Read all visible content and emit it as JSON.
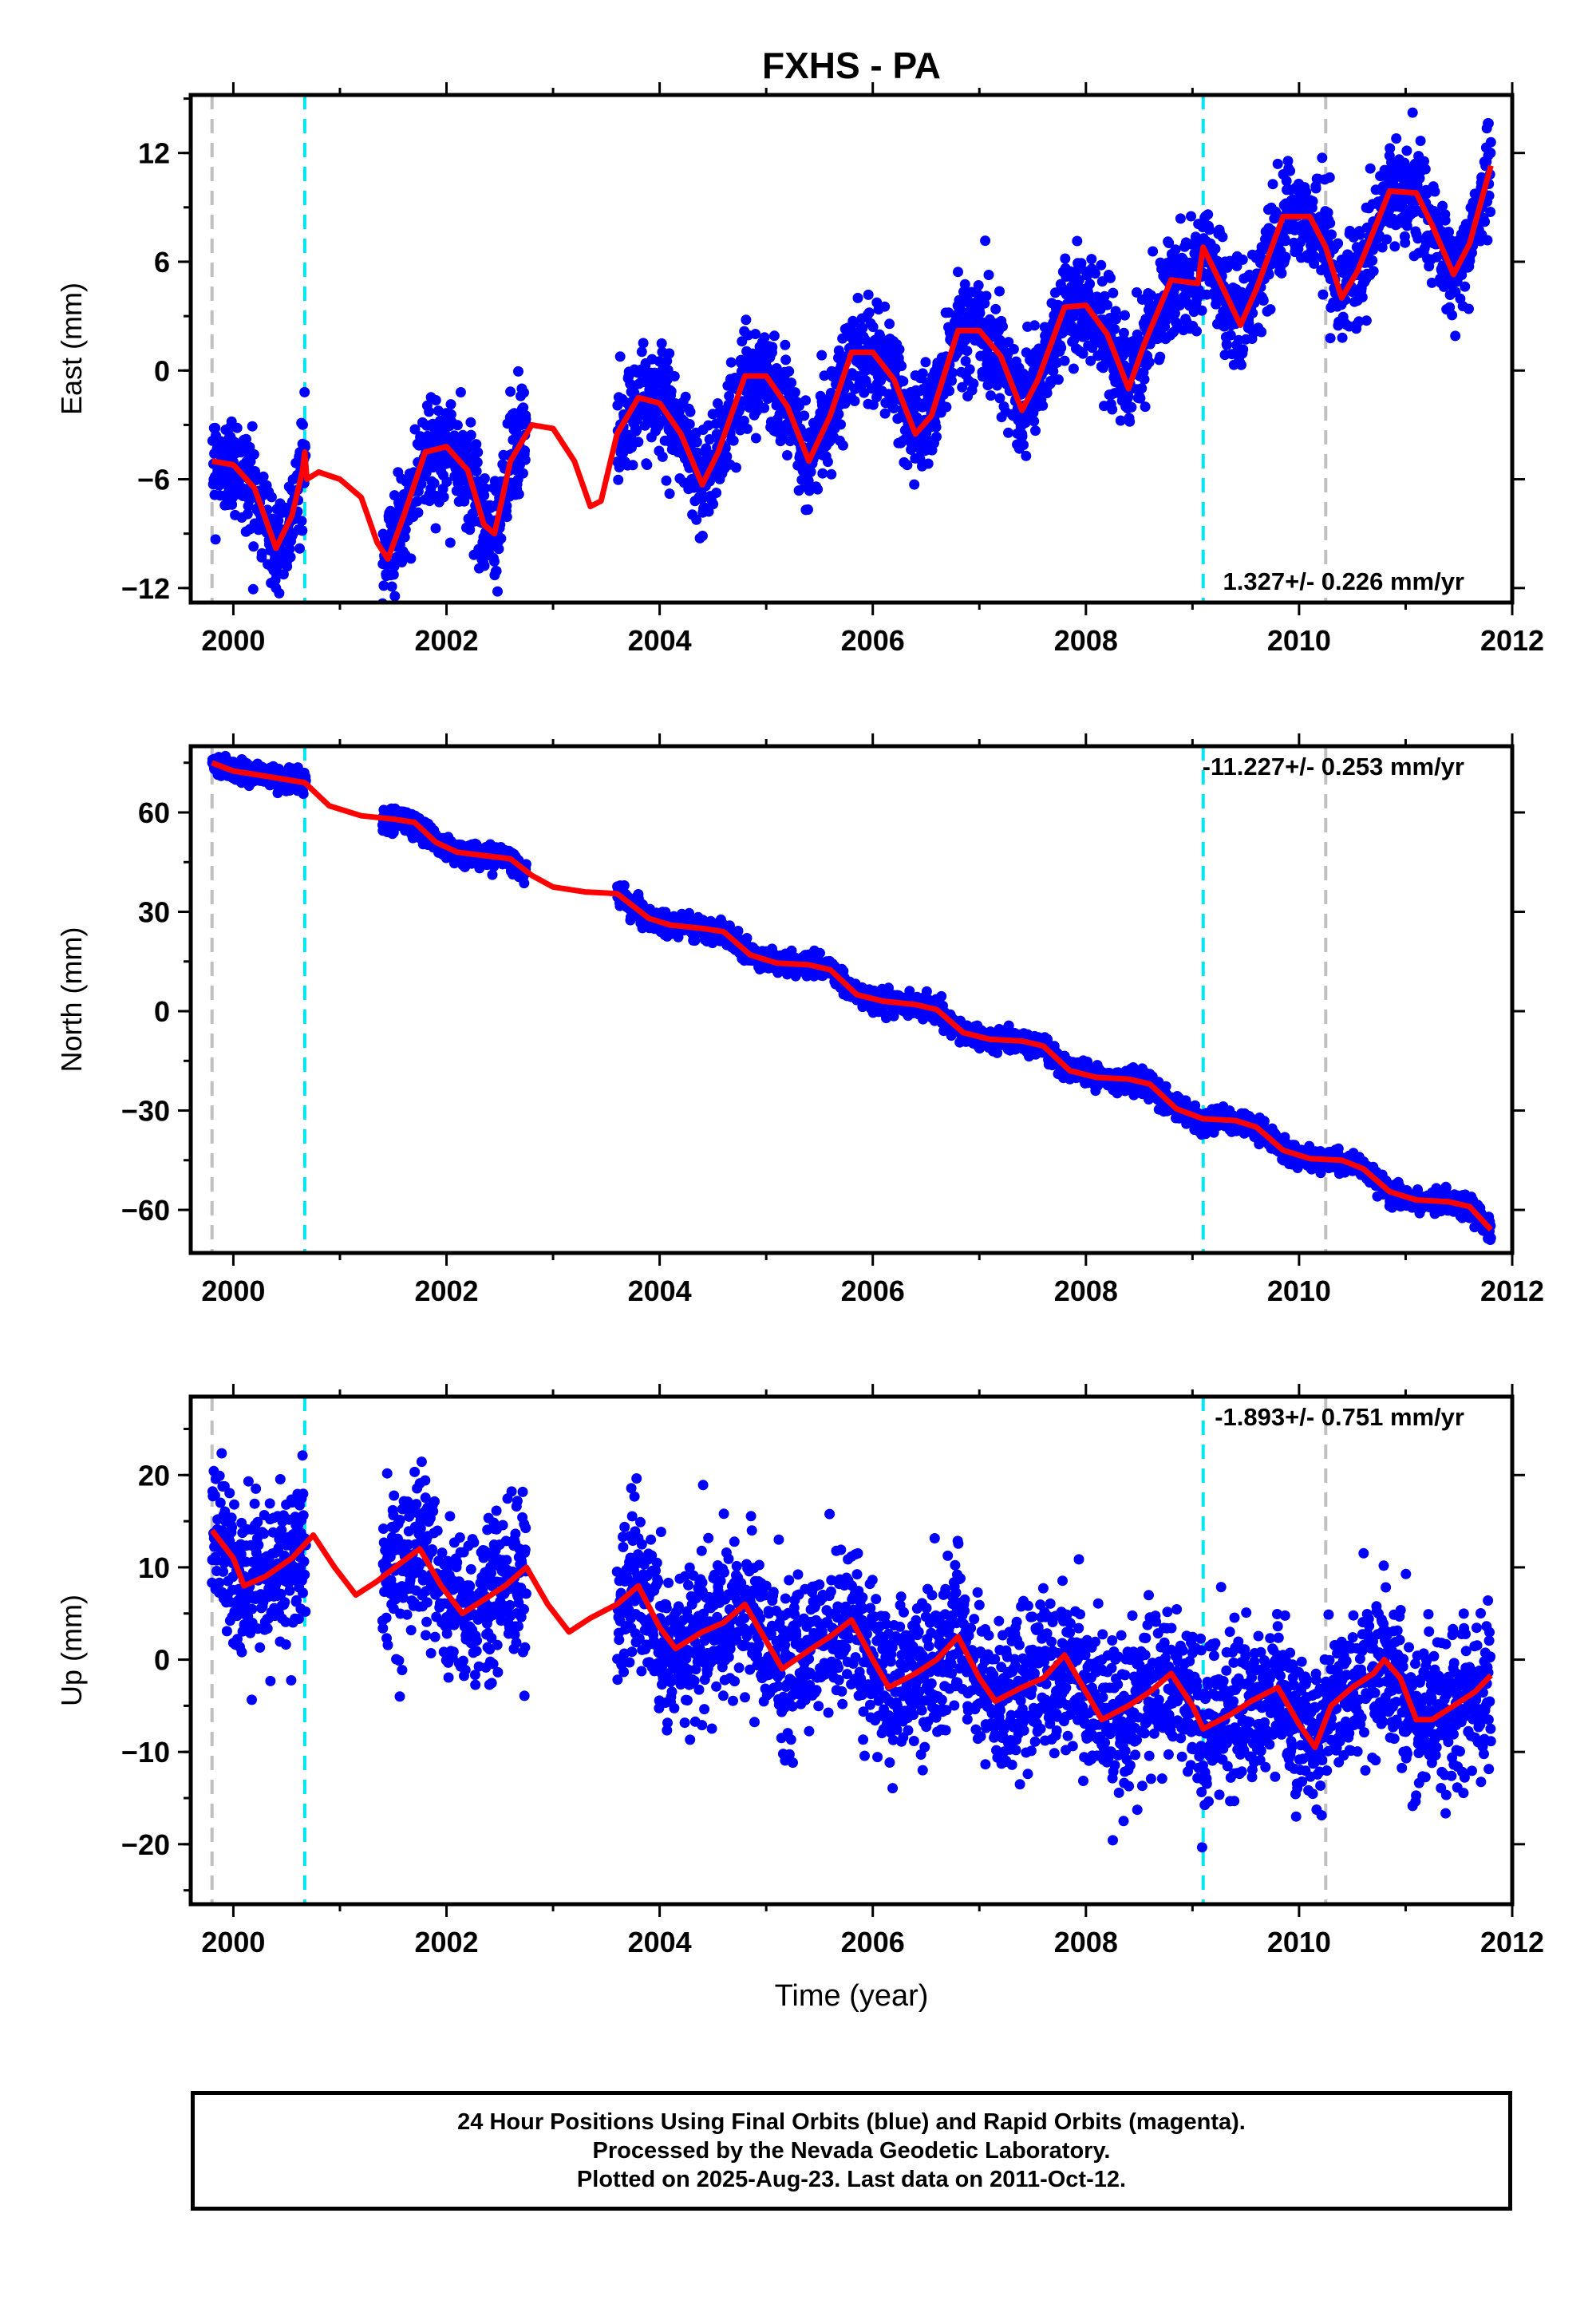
{
  "title": "FXHS - PA",
  "xlabel": "Time (year)",
  "x_ticks": [
    "2000",
    "2002",
    "2004",
    "2006",
    "2008",
    "2010",
    "2012"
  ],
  "colors": {
    "points": "#0000ff",
    "fit": "#ff0000",
    "cyan_line": "#00e5ee",
    "gray_line": "#c0c0c0"
  },
  "footer": {
    "line1": "24 Hour Positions Using Final Orbits (blue) and Rapid Orbits (magenta).",
    "line2": "Processed by the Nevada Geodetic Laboratory.",
    "line3": "Plotted on 2025-Aug-23. Last data on 2011-Oct-12."
  },
  "chart_data": [
    {
      "type": "scatter",
      "ylabel": "East (mm)",
      "rate": "1.327+/- 0.226 mm/yr",
      "xlim": [
        1999.6,
        2012.0
      ],
      "ylim": [
        -12.8,
        15.2
      ],
      "y_ticks": [
        12,
        6,
        0,
        -6,
        -12
      ],
      "y_tick_labels": [
        "12",
        "6",
        "0",
        "−6",
        "−12"
      ],
      "gray_lines": [
        1999.8,
        2010.25
      ],
      "cyan_lines": [
        2000.67,
        2009.1
      ],
      "data_segments": [
        [
          1999.8,
          2000.68
        ],
        [
          2001.4,
          2002.75
        ],
        [
          2003.6,
          2011.8
        ]
      ],
      "fit": [
        [
          1999.8,
          -5.0
        ],
        [
          2000.0,
          -5.2
        ],
        [
          2000.2,
          -6.5
        ],
        [
          2000.4,
          -9.8
        ],
        [
          2000.55,
          -8.0
        ],
        [
          2000.65,
          -5.5
        ],
        [
          2000.67,
          -4.5
        ],
        [
          2000.69,
          -6.0
        ],
        [
          2000.8,
          -5.6
        ],
        [
          2001.0,
          -6.0
        ],
        [
          2001.2,
          -7.0
        ],
        [
          2001.35,
          -9.5
        ],
        [
          2001.45,
          -10.4
        ],
        [
          2001.6,
          -8.0
        ],
        [
          2001.8,
          -4.5
        ],
        [
          2002.0,
          -4.2
        ],
        [
          2002.2,
          -5.5
        ],
        [
          2002.35,
          -8.5
        ],
        [
          2002.45,
          -9.0
        ],
        [
          2002.6,
          -5.0
        ],
        [
          2002.8,
          -3.0
        ],
        [
          2003.0,
          -3.2
        ],
        [
          2003.2,
          -5.0
        ],
        [
          2003.35,
          -7.5
        ],
        [
          2003.45,
          -7.2
        ],
        [
          2003.6,
          -3.5
        ],
        [
          2003.8,
          -1.5
        ],
        [
          2004.0,
          -1.8
        ],
        [
          2004.2,
          -3.5
        ],
        [
          2004.4,
          -6.3
        ],
        [
          2004.55,
          -4.5
        ],
        [
          2004.8,
          -0.3
        ],
        [
          2005.0,
          -0.3
        ],
        [
          2005.2,
          -2.0
        ],
        [
          2005.4,
          -5.0
        ],
        [
          2005.6,
          -2.5
        ],
        [
          2005.8,
          1.0
        ],
        [
          2006.0,
          1.0
        ],
        [
          2006.2,
          -0.5
        ],
        [
          2006.4,
          -3.5
        ],
        [
          2006.55,
          -2.5
        ],
        [
          2006.8,
          2.2
        ],
        [
          2007.0,
          2.2
        ],
        [
          2007.2,
          0.8
        ],
        [
          2007.4,
          -2.2
        ],
        [
          2007.55,
          -0.5
        ],
        [
          2007.8,
          3.5
        ],
        [
          2008.0,
          3.6
        ],
        [
          2008.2,
          2.0
        ],
        [
          2008.4,
          -1.0
        ],
        [
          2008.55,
          1.5
        ],
        [
          2008.8,
          5.0
        ],
        [
          2009.05,
          4.8
        ],
        [
          2009.1,
          6.8
        ],
        [
          2009.25,
          5.0
        ],
        [
          2009.45,
          2.5
        ],
        [
          2009.6,
          4.5
        ],
        [
          2009.85,
          8.5
        ],
        [
          2010.1,
          8.5
        ],
        [
          2010.25,
          6.8
        ],
        [
          2010.4,
          4.0
        ],
        [
          2010.55,
          5.5
        ],
        [
          2010.85,
          9.9
        ],
        [
          2011.1,
          9.8
        ],
        [
          2011.25,
          8.0
        ],
        [
          2011.45,
          5.3
        ],
        [
          2011.6,
          7.0
        ],
        [
          2011.8,
          11.3
        ]
      ],
      "scatter_sigma": 1.4
    },
    {
      "type": "scatter",
      "ylabel": "North (mm)",
      "rate": "-11.227+/- 0.253 mm/yr",
      "xlim": [
        1999.6,
        2012.0
      ],
      "ylim": [
        -73,
        80
      ],
      "y_ticks": [
        60,
        30,
        0,
        -30,
        -60
      ],
      "y_tick_labels": [
        "60",
        "30",
        "0",
        "−30",
        "−60"
      ],
      "gray_lines": [
        1999.8,
        2010.25
      ],
      "cyan_lines": [
        2000.67,
        2009.1
      ],
      "data_segments": [
        [
          1999.8,
          2000.68
        ],
        [
          2001.4,
          2002.75
        ],
        [
          2003.6,
          2011.8
        ]
      ],
      "fit": [
        [
          1999.8,
          75
        ],
        [
          2000.0,
          72.5
        ],
        [
          2000.3,
          71
        ],
        [
          2000.67,
          69
        ],
        [
          2000.9,
          62
        ],
        [
          2001.2,
          59
        ],
        [
          2001.5,
          58
        ],
        [
          2001.7,
          57
        ],
        [
          2001.9,
          51
        ],
        [
          2002.1,
          48
        ],
        [
          2002.35,
          47
        ],
        [
          2002.6,
          46
        ],
        [
          2002.8,
          41
        ],
        [
          2003.0,
          37.5
        ],
        [
          2003.3,
          36
        ],
        [
          2003.6,
          35.5
        ],
        [
          2003.9,
          28
        ],
        [
          2004.1,
          26
        ],
        [
          2004.4,
          25
        ],
        [
          2004.6,
          24
        ],
        [
          2004.85,
          17
        ],
        [
          2005.1,
          14.5
        ],
        [
          2005.4,
          14
        ],
        [
          2005.6,
          12.5
        ],
        [
          2005.85,
          5
        ],
        [
          2006.1,
          3
        ],
        [
          2006.4,
          2
        ],
        [
          2006.6,
          0.5
        ],
        [
          2006.85,
          -6.5
        ],
        [
          2007.1,
          -8.5
        ],
        [
          2007.4,
          -9
        ],
        [
          2007.6,
          -10.5
        ],
        [
          2007.85,
          -18
        ],
        [
          2008.1,
          -20
        ],
        [
          2008.4,
          -20.5
        ],
        [
          2008.6,
          -22
        ],
        [
          2008.85,
          -29.5
        ],
        [
          2009.1,
          -32.5
        ],
        [
          2009.4,
          -33
        ],
        [
          2009.6,
          -35
        ],
        [
          2009.85,
          -42
        ],
        [
          2010.1,
          -44.5
        ],
        [
          2010.4,
          -45
        ],
        [
          2010.6,
          -47.5
        ],
        [
          2010.85,
          -54.5
        ],
        [
          2011.1,
          -57
        ],
        [
          2011.4,
          -57.5
        ],
        [
          2011.6,
          -59
        ],
        [
          2011.8,
          -66
        ]
      ],
      "scatter_sigma": 1.6
    },
    {
      "type": "scatter",
      "ylabel": "Up (mm)",
      "rate": "-1.893+/- 0.751 mm/yr",
      "xlim": [
        1999.6,
        2012.0
      ],
      "ylim": [
        -26.5,
        28.5
      ],
      "y_ticks": [
        20,
        10,
        0,
        -10,
        -20
      ],
      "y_tick_labels": [
        "20",
        "10",
        "0",
        "−10",
        "−20"
      ],
      "gray_lines": [
        1999.8,
        2010.25
      ],
      "cyan_lines": [
        2000.67,
        2009.1
      ],
      "data_segments": [
        [
          1999.8,
          2000.68
        ],
        [
          2001.4,
          2002.75
        ],
        [
          2003.6,
          2011.8
        ]
      ],
      "fit": [
        [
          1999.8,
          14
        ],
        [
          2000.0,
          11
        ],
        [
          2000.1,
          8
        ],
        [
          2000.3,
          9
        ],
        [
          2000.55,
          11
        ],
        [
          2000.75,
          13.5
        ],
        [
          2000.95,
          10
        ],
        [
          2001.15,
          7
        ],
        [
          2001.35,
          8.5
        ],
        [
          2001.55,
          10.3
        ],
        [
          2001.75,
          12
        ],
        [
          2001.95,
          8
        ],
        [
          2002.15,
          5
        ],
        [
          2002.35,
          6.5
        ],
        [
          2002.55,
          8
        ],
        [
          2002.75,
          10
        ],
        [
          2002.95,
          6
        ],
        [
          2003.15,
          3
        ],
        [
          2003.35,
          4.5
        ],
        [
          2003.6,
          6
        ],
        [
          2003.8,
          8
        ],
        [
          2004.0,
          3.5
        ],
        [
          2004.15,
          1.2
        ],
        [
          2004.4,
          3
        ],
        [
          2004.6,
          4
        ],
        [
          2004.8,
          6
        ],
        [
          2005.0,
          2
        ],
        [
          2005.15,
          -1
        ],
        [
          2005.4,
          1
        ],
        [
          2005.6,
          2.5
        ],
        [
          2005.8,
          4.3
        ],
        [
          2006.0,
          0
        ],
        [
          2006.15,
          -3
        ],
        [
          2006.4,
          -1.5
        ],
        [
          2006.6,
          0
        ],
        [
          2006.8,
          2.5
        ],
        [
          2007.0,
          -2
        ],
        [
          2007.15,
          -4.5
        ],
        [
          2007.4,
          -3
        ],
        [
          2007.6,
          -2
        ],
        [
          2007.8,
          0.5
        ],
        [
          2008.0,
          -3.5
        ],
        [
          2008.15,
          -6.5
        ],
        [
          2008.4,
          -5
        ],
        [
          2008.6,
          -3.5
        ],
        [
          2008.8,
          -1.5
        ],
        [
          2009.0,
          -5
        ],
        [
          2009.1,
          -7.5
        ],
        [
          2009.35,
          -6
        ],
        [
          2009.55,
          -4.5
        ],
        [
          2009.8,
          -3
        ],
        [
          2010.0,
          -7
        ],
        [
          2010.15,
          -9.5
        ],
        [
          2010.3,
          -5
        ],
        [
          2010.5,
          -3
        ],
        [
          2010.7,
          -1.5
        ],
        [
          2010.8,
          0
        ],
        [
          2010.95,
          -2
        ],
        [
          2011.1,
          -6.5
        ],
        [
          2011.25,
          -6.5
        ],
        [
          2011.45,
          -5
        ],
        [
          2011.65,
          -3.5
        ],
        [
          2011.8,
          -1.7
        ]
      ],
      "scatter_sigma": 4.2
    }
  ]
}
